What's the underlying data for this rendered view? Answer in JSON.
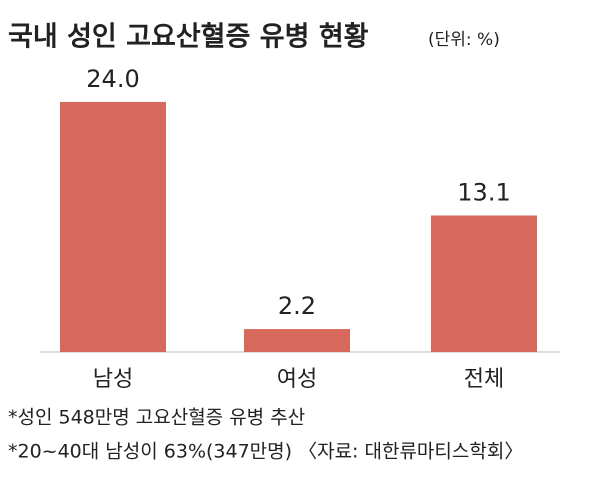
{
  "chart_data": {
    "type": "bar",
    "title": "국내 성인 고요산혈증 유병 현황",
    "subtitle": "(단위: %)",
    "categories": [
      "남성",
      "여성",
      "전체"
    ],
    "values": [
      24.0,
      2.2,
      13.1
    ],
    "value_labels": [
      "24.0",
      "2.2",
      "13.1"
    ],
    "color": "#d6695b",
    "notes": [
      "*성인 548만명 고요산혈증 유병 추산",
      "*20~40대 남성이 63%(347만명) 〈자료: 대한류마티스학회〉"
    ]
  }
}
